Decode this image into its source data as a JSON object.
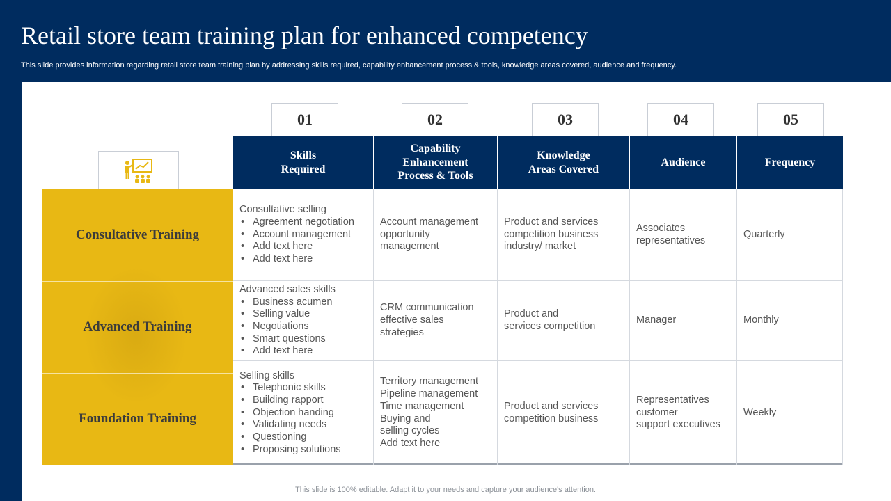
{
  "title": "Retail store team training plan for enhanced competency",
  "subtitle": "This slide provides information regarding retail store team training plan by addressing skills required, capability enhancement process & tools, knowledge areas covered, audience and frequency.",
  "icon": "presentation-training-icon",
  "colors": {
    "navy": "#002C5F",
    "gold": "#E8B814"
  },
  "numbers": [
    "01",
    "02",
    "03",
    "04",
    "05"
  ],
  "headers": [
    {
      "lines": [
        "Skills",
        "Required"
      ]
    },
    {
      "lines": [
        "Capability",
        "Enhancement",
        "Process & Tools"
      ]
    },
    {
      "lines": [
        "Knowledge",
        "Areas Covered"
      ]
    },
    {
      "lines": [
        "Audience"
      ]
    },
    {
      "lines": [
        "Frequency"
      ]
    }
  ],
  "rows": [
    {
      "label": "Consultative Training",
      "skills": {
        "intro": "Consultative selling",
        "items": [
          "Agreement negotiation",
          "Account management",
          "Add text here",
          "Add text here"
        ]
      },
      "tools": [
        "Account management",
        "opportunity",
        "management"
      ],
      "knowledge": [
        "Product and services",
        "competition business",
        "industry/ market"
      ],
      "audience": [
        "Associates",
        "representatives"
      ],
      "frequency": "Quarterly"
    },
    {
      "label": "Advanced Training",
      "skills": {
        "intro": "Advanced sales skills",
        "items": [
          "Business acumen",
          "Selling value",
          "Negotiations",
          "Smart questions",
          "Add text here"
        ]
      },
      "tools": [
        "CRM communication",
        "effective sales",
        "strategies"
      ],
      "knowledge": [
        "Product and",
        "services competition"
      ],
      "audience": [
        "Manager"
      ],
      "frequency": "Monthly"
    },
    {
      "label": "Foundation Training",
      "skills": {
        "intro": "Selling skills",
        "items": [
          "Telephonic skills",
          "Building rapport",
          "Objection handing",
          "Validating needs",
          "Questioning",
          "Proposing solutions"
        ]
      },
      "tools": [
        "Territory management",
        "Pipeline management",
        "Time management",
        "Buying and",
        "selling cycles",
        "Add text here"
      ],
      "knowledge": [
        "Product and services",
        "competition business"
      ],
      "audience": [
        "Representatives",
        "customer",
        "support executives"
      ],
      "frequency": "Weekly"
    }
  ],
  "footer": "This slide is 100% editable. Adapt it to your needs and capture your audience's attention."
}
